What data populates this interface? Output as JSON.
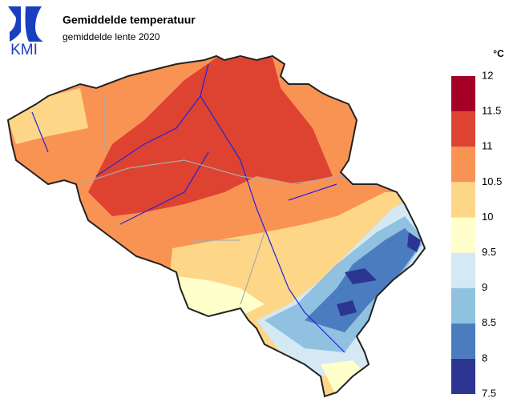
{
  "logo": "KMI",
  "title": "Gemiddelde temperatuur",
  "subtitle": "gemiddelde lente 2020",
  "legend": {
    "unit": "°C",
    "ticks": [
      7.5,
      8,
      8.5,
      9,
      9.5,
      10,
      10.5,
      11,
      11.5,
      12
    ],
    "colors": [
      "#2c3591",
      "#4b7cbf",
      "#90c1e0",
      "#d4e9f3",
      "#ffffcc",
      "#fed687",
      "#f99354",
      "#de4331",
      "#a50026"
    ]
  }
}
